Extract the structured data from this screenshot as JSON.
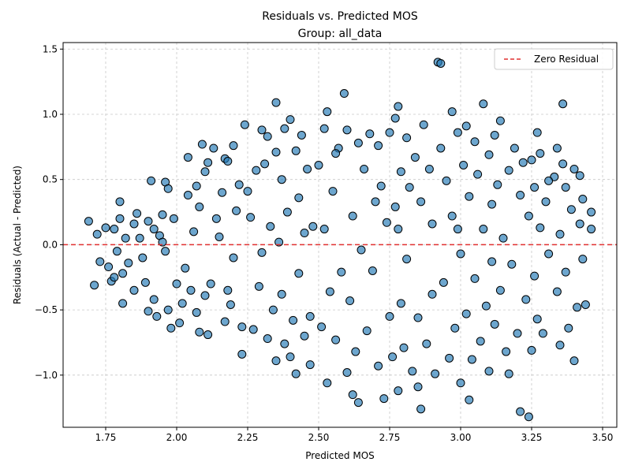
{
  "colors": {
    "point_fill": "#1f77b4",
    "point_stroke": "#000000",
    "zero_line": "#e03030",
    "grid": "#b0b0b0",
    "axes": "#000000",
    "background": "#ffffff"
  },
  "chart_data": {
    "type": "scatter",
    "title": "Residuals vs. Predicted MOS",
    "subtitle": "Group: all_data",
    "xlabel": "Predicted MOS",
    "ylabel": "Residuals (Actual - Predicted)",
    "xlim": [
      1.6,
      3.55
    ],
    "ylim": [
      -1.4,
      1.55
    ],
    "xticks": [
      1.75,
      2.0,
      2.25,
      2.5,
      2.75,
      3.0,
      3.25,
      3.5
    ],
    "xtick_labels": [
      "1.75",
      "2.00",
      "2.25",
      "2.50",
      "2.75",
      "3.00",
      "3.25",
      "3.50"
    ],
    "yticks": [
      -1.0,
      -0.5,
      0.0,
      0.5,
      1.0,
      1.5
    ],
    "ytick_labels": [
      "−1.0",
      "−0.5",
      "0.0",
      "0.5",
      "1.0",
      "1.5"
    ],
    "grid": true,
    "legend_position": "top-right",
    "reference_line": {
      "name": "Zero Residual",
      "y": 0,
      "style": "dashed"
    },
    "point_alpha": 0.65,
    "series": [
      {
        "points": [
          [
            1.69,
            0.18
          ],
          [
            1.71,
            -0.31
          ],
          [
            1.72,
            0.08
          ],
          [
            1.73,
            -0.13
          ],
          [
            1.75,
            0.13
          ],
          [
            1.76,
            -0.17
          ],
          [
            1.77,
            -0.28
          ],
          [
            1.78,
            0.12
          ],
          [
            1.79,
            -0.05
          ],
          [
            1.8,
            0.33
          ],
          [
            1.8,
            0.2
          ],
          [
            1.81,
            -0.22
          ],
          [
            1.81,
            -0.45
          ],
          [
            1.82,
            0.05
          ],
          [
            1.83,
            -0.14
          ],
          [
            1.85,
            0.16
          ],
          [
            1.85,
            -0.35
          ],
          [
            1.86,
            0.24
          ],
          [
            1.87,
            0.05
          ],
          [
            1.88,
            -0.1
          ],
          [
            1.89,
            -0.29
          ],
          [
            1.9,
            0.18
          ],
          [
            1.9,
            -0.51
          ],
          [
            1.91,
            0.49
          ],
          [
            1.92,
            0.12
          ],
          [
            1.92,
            -0.42
          ],
          [
            1.93,
            -0.55
          ],
          [
            1.94,
            0.07
          ],
          [
            1.95,
            0.23
          ],
          [
            1.96,
            0.48
          ],
          [
            1.96,
            -0.05
          ],
          [
            1.97,
            0.43
          ],
          [
            1.97,
            -0.5
          ],
          [
            1.98,
            -0.64
          ],
          [
            1.99,
            0.2
          ],
          [
            2.0,
            -0.3
          ],
          [
            2.01,
            -0.6
          ],
          [
            2.02,
            -0.45
          ],
          [
            2.03,
            -0.18
          ],
          [
            2.04,
            0.38
          ],
          [
            2.04,
            0.67
          ],
          [
            2.05,
            -0.35
          ],
          [
            2.06,
            0.1
          ],
          [
            2.07,
            0.45
          ],
          [
            2.07,
            -0.52
          ],
          [
            2.08,
            0.29
          ],
          [
            2.08,
            -0.67
          ],
          [
            2.09,
            0.77
          ],
          [
            2.1,
            0.56
          ],
          [
            2.1,
            -0.39
          ],
          [
            2.11,
            0.63
          ],
          [
            2.11,
            -0.69
          ],
          [
            2.12,
            -0.3
          ],
          [
            2.14,
            0.2
          ],
          [
            2.15,
            0.06
          ],
          [
            2.16,
            0.4
          ],
          [
            2.17,
            -0.59
          ],
          [
            2.17,
            0.66
          ],
          [
            2.18,
            0.64
          ],
          [
            2.18,
            -0.35
          ],
          [
            2.19,
            -0.46
          ],
          [
            2.2,
            0.76
          ],
          [
            2.2,
            -0.1
          ],
          [
            2.21,
            0.26
          ],
          [
            2.22,
            0.46
          ],
          [
            2.23,
            -0.63
          ],
          [
            2.23,
            -0.84
          ],
          [
            2.24,
            0.92
          ],
          [
            2.25,
            0.41
          ],
          [
            2.26,
            0.21
          ],
          [
            2.27,
            -0.65
          ],
          [
            2.28,
            0.57
          ],
          [
            2.29,
            -0.32
          ],
          [
            2.3,
            0.88
          ],
          [
            2.3,
            -0.06
          ],
          [
            2.31,
            0.62
          ],
          [
            2.32,
            -0.72
          ],
          [
            2.32,
            0.83
          ],
          [
            2.33,
            0.14
          ],
          [
            2.34,
            -0.5
          ],
          [
            2.35,
            0.71
          ],
          [
            2.35,
            -0.89
          ],
          [
            2.36,
            0.02
          ],
          [
            2.37,
            0.5
          ],
          [
            2.37,
            -0.38
          ],
          [
            2.38,
            0.89
          ],
          [
            2.38,
            -0.76
          ],
          [
            2.39,
            0.25
          ],
          [
            2.4,
            -0.86
          ],
          [
            2.4,
            0.96
          ],
          [
            2.41,
            -0.58
          ],
          [
            2.42,
            0.72
          ],
          [
            2.42,
            -0.99
          ],
          [
            2.43,
            0.36
          ],
          [
            2.43,
            -0.22
          ],
          [
            2.44,
            0.84
          ],
          [
            2.45,
            -0.7
          ],
          [
            2.45,
            0.09
          ],
          [
            2.46,
            0.58
          ],
          [
            2.47,
            -0.92
          ],
          [
            2.48,
            0.14
          ],
          [
            2.5,
            0.61
          ],
          [
            2.51,
            -0.63
          ],
          [
            2.52,
            0.12
          ],
          [
            2.52,
            0.89
          ],
          [
            2.53,
            -1.06
          ],
          [
            2.53,
            1.02
          ],
          [
            2.54,
            -0.36
          ],
          [
            2.55,
            0.41
          ],
          [
            2.56,
            -0.73
          ],
          [
            2.57,
            0.74
          ],
          [
            2.58,
            -0.21
          ],
          [
            2.59,
            1.16
          ],
          [
            2.6,
            -0.98
          ],
          [
            2.6,
            0.88
          ],
          [
            2.61,
            -0.43
          ],
          [
            2.62,
            0.22
          ],
          [
            2.63,
            -0.82
          ],
          [
            2.64,
            0.78
          ],
          [
            2.64,
            -1.21
          ],
          [
            2.65,
            -0.04
          ],
          [
            2.66,
            0.58
          ],
          [
            2.67,
            -0.66
          ],
          [
            2.68,
            0.85
          ],
          [
            2.69,
            -0.2
          ],
          [
            2.7,
            0.33
          ],
          [
            2.71,
            -0.93
          ],
          [
            2.71,
            0.76
          ],
          [
            2.72,
            0.45
          ],
          [
            2.73,
            -1.18
          ],
          [
            2.74,
            0.17
          ],
          [
            2.75,
            0.86
          ],
          [
            2.75,
            -0.55
          ],
          [
            2.76,
            -0.86
          ],
          [
            2.77,
            0.97
          ],
          [
            2.77,
            0.29
          ],
          [
            2.78,
            -1.12
          ],
          [
            2.78,
            1.06
          ],
          [
            2.79,
            -0.45
          ],
          [
            2.79,
            0.56
          ],
          [
            2.8,
            -0.79
          ],
          [
            2.81,
            0.82
          ],
          [
            2.81,
            -0.11
          ],
          [
            2.82,
            0.44
          ],
          [
            2.83,
            -0.97
          ],
          [
            2.84,
            0.67
          ],
          [
            2.85,
            -0.56
          ],
          [
            2.86,
            0.33
          ],
          [
            2.86,
            -1.26
          ],
          [
            2.87,
            0.92
          ],
          [
            2.88,
            -0.76
          ],
          [
            2.89,
            0.58
          ],
          [
            2.9,
            -0.38
          ],
          [
            2.9,
            0.16
          ],
          [
            2.91,
            -0.99
          ],
          [
            2.92,
            1.4
          ],
          [
            2.93,
            1.39
          ],
          [
            2.93,
            0.74
          ],
          [
            2.94,
            -0.29
          ],
          [
            2.95,
            0.49
          ],
          [
            2.96,
            -0.87
          ],
          [
            2.97,
            1.02
          ],
          [
            2.97,
            0.22
          ],
          [
            2.98,
            -0.64
          ],
          [
            2.99,
            0.86
          ],
          [
            3.0,
            -0.07
          ],
          [
            3.0,
            -1.06
          ],
          [
            3.01,
            0.61
          ],
          [
            3.02,
            -0.53
          ],
          [
            3.02,
            0.91
          ],
          [
            3.03,
            0.37
          ],
          [
            3.04,
            -0.88
          ],
          [
            3.05,
            0.79
          ],
          [
            3.05,
            -0.26
          ],
          [
            3.06,
            0.54
          ],
          [
            3.07,
            -0.74
          ],
          [
            3.08,
            1.08
          ],
          [
            3.08,
            0.12
          ],
          [
            3.09,
            -0.47
          ],
          [
            3.1,
            0.69
          ],
          [
            3.1,
            -0.97
          ],
          [
            3.11,
            0.31
          ],
          [
            3.12,
            0.84
          ],
          [
            3.12,
            -0.61
          ],
          [
            3.13,
            0.46
          ],
          [
            3.14,
            -0.35
          ],
          [
            3.14,
            0.95
          ],
          [
            3.15,
            0.05
          ],
          [
            3.16,
            -0.82
          ],
          [
            3.17,
            0.57
          ],
          [
            3.18,
            -0.15
          ],
          [
            3.19,
            0.74
          ],
          [
            3.2,
            -0.68
          ],
          [
            3.21,
            -1.28
          ],
          [
            3.21,
            0.38
          ],
          [
            3.22,
            0.63
          ],
          [
            3.23,
            -0.42
          ],
          [
            3.24,
            -1.32
          ],
          [
            3.24,
            0.22
          ],
          [
            3.25,
            0.65
          ],
          [
            3.25,
            -0.81
          ],
          [
            3.26,
            0.44
          ],
          [
            3.26,
            -0.24
          ],
          [
            3.27,
            0.86
          ],
          [
            3.27,
            -0.57
          ],
          [
            3.28,
            0.13
          ],
          [
            3.28,
            0.7
          ],
          [
            3.29,
            -0.68
          ],
          [
            3.3,
            0.33
          ],
          [
            3.31,
            -0.07
          ],
          [
            3.33,
            0.52
          ],
          [
            3.34,
            -0.36
          ],
          [
            3.34,
            0.74
          ],
          [
            3.35,
            -0.77
          ],
          [
            3.35,
            0.08
          ],
          [
            3.36,
            1.08
          ],
          [
            3.36,
            0.62
          ],
          [
            3.37,
            -0.21
          ],
          [
            3.37,
            0.44
          ],
          [
            3.38,
            -0.64
          ],
          [
            3.39,
            0.27
          ],
          [
            3.4,
            -0.89
          ],
          [
            3.4,
            0.58
          ],
          [
            3.41,
            -0.48
          ],
          [
            3.42,
            0.16
          ],
          [
            3.42,
            0.53
          ],
          [
            3.43,
            -0.11
          ],
          [
            3.43,
            0.35
          ],
          [
            3.44,
            -0.46
          ],
          [
            3.46,
            0.25
          ],
          [
            3.46,
            0.12
          ],
          [
            2.35,
            1.09
          ],
          [
            2.47,
            -0.55
          ],
          [
            2.62,
            -1.15
          ],
          [
            2.85,
            -1.09
          ],
          [
            3.03,
            -1.19
          ],
          [
            3.17,
            -0.99
          ],
          [
            1.78,
            -0.25
          ],
          [
            1.95,
            0.02
          ],
          [
            2.13,
            0.74
          ],
          [
            2.56,
            0.7
          ],
          [
            2.78,
            0.12
          ],
          [
            2.99,
            0.12
          ],
          [
            3.11,
            -0.13
          ],
          [
            3.31,
            0.49
          ]
        ]
      }
    ]
  }
}
